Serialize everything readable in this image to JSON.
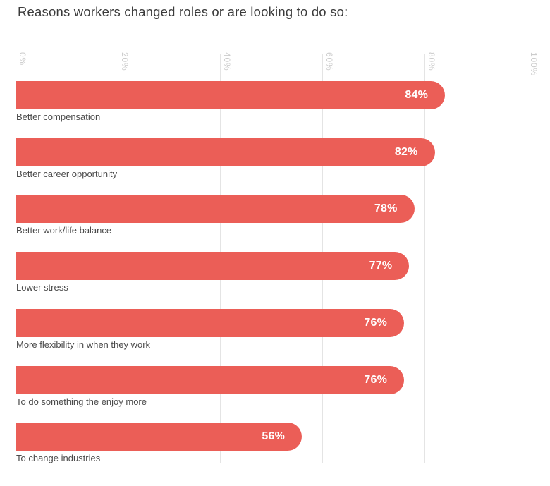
{
  "chart_data": {
    "type": "bar",
    "orientation": "horizontal",
    "title": "Reasons workers changed roles or are looking to do so:",
    "categories": [
      "Better compensation",
      "Better career opportunity",
      "Better work/life balance",
      "Lower stress",
      "More flexibility in when they work",
      "To do something the enjoy more",
      "To change industries"
    ],
    "values": [
      84,
      82,
      78,
      77,
      76,
      76,
      56
    ],
    "value_labels": [
      "84%",
      "82%",
      "78%",
      "77%",
      "76%",
      "76%",
      "56%"
    ],
    "xlim": [
      0,
      100
    ],
    "tick_values": [
      0,
      20,
      40,
      60,
      80,
      100
    ],
    "tick_labels": [
      "0%",
      "20%",
      "40%",
      "60%",
      "80%",
      "100%"
    ],
    "grid": "vertical",
    "legend": "none",
    "bar_color": "#eb5e57",
    "value_label_color": "#ffffff",
    "tick_label_color": "#cccccc",
    "category_label_color": "#4a4a4a",
    "title_color": "#3b3b3b"
  }
}
